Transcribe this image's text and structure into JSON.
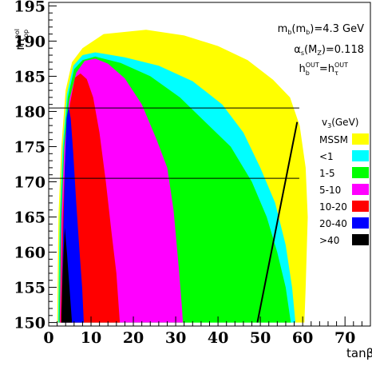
{
  "chart_data": {
    "type": "area",
    "xlabel": "tanβ",
    "ylabel": "m_top^pol",
    "xlim": [
      0,
      76
    ],
    "ylim": [
      149.5,
      195.5
    ],
    "x_ticks": [
      0,
      10,
      20,
      30,
      40,
      50,
      60,
      70
    ],
    "y_ticks": [
      150,
      155,
      160,
      165,
      170,
      175,
      180,
      185,
      190,
      195
    ],
    "grid": false,
    "annotations": [
      "m_b(m_b)=4.3 GeV",
      "α_s(M_Z)=0.118",
      "h_b^OUT=h_τ^OUT"
    ],
    "legend_title": "v_3(GeV)",
    "legend_position": "right",
    "horizontal_lines": [
      180.5,
      170.5
    ],
    "regions": [
      {
        "name": "MSSM",
        "color": "#ffff00",
        "boundary": [
          [
            2.0,
            150
          ],
          [
            2.3,
            165
          ],
          [
            3.0,
            175
          ],
          [
            4.0,
            183
          ],
          [
            5.5,
            187
          ],
          [
            8,
            189
          ],
          [
            13,
            191
          ],
          [
            23,
            191.6
          ],
          [
            32,
            190.8
          ],
          [
            40,
            189.3
          ],
          [
            47,
            187.3
          ],
          [
            53,
            184.5
          ],
          [
            57,
            182
          ],
          [
            59.3,
            178
          ],
          [
            60.7,
            172
          ],
          [
            61.2,
            165
          ],
          [
            60.7,
            155
          ],
          [
            60.4,
            150
          ]
        ]
      },
      {
        "name": "<1",
        "color": "#00ffff",
        "boundary": [
          [
            2.2,
            150
          ],
          [
            2.6,
            165
          ],
          [
            3.3,
            175
          ],
          [
            4.3,
            182.5
          ],
          [
            5.8,
            186.5
          ],
          [
            8,
            188
          ],
          [
            11,
            188.4
          ],
          [
            18,
            187.7
          ],
          [
            26,
            186.5
          ],
          [
            34,
            184.3
          ],
          [
            41,
            181
          ],
          [
            46,
            177
          ],
          [
            50,
            172
          ],
          [
            53.5,
            167
          ],
          [
            56,
            161
          ],
          [
            57.5,
            155
          ],
          [
            58.3,
            150
          ]
        ]
      },
      {
        "name": "1-5",
        "color": "#00ff00",
        "boundary": [
          [
            2.4,
            150
          ],
          [
            2.8,
            165
          ],
          [
            3.5,
            175
          ],
          [
            4.5,
            182
          ],
          [
            6,
            186
          ],
          [
            8,
            187.3
          ],
          [
            11,
            187.8
          ],
          [
            17,
            186.9
          ],
          [
            24,
            185
          ],
          [
            31,
            182
          ],
          [
            37,
            178.5
          ],
          [
            43,
            175
          ],
          [
            48,
            170
          ],
          [
            51.5,
            165
          ],
          [
            54,
            160
          ],
          [
            56,
            155
          ],
          [
            57.2,
            150
          ]
        ]
      },
      {
        "name": "5-10",
        "color": "#ff00ff",
        "boundary": [
          [
            2.6,
            150
          ],
          [
            3.0,
            165
          ],
          [
            3.7,
            175
          ],
          [
            4.8,
            181.5
          ],
          [
            6.5,
            185.5
          ],
          [
            8.5,
            187.2
          ],
          [
            11,
            187.5
          ],
          [
            14,
            186.8
          ],
          [
            18,
            184.7
          ],
          [
            22,
            181
          ],
          [
            25.5,
            176
          ],
          [
            28,
            172
          ],
          [
            29.5,
            166
          ],
          [
            30.7,
            158
          ],
          [
            31.5,
            152
          ],
          [
            31.7,
            150
          ]
        ]
      },
      {
        "name": "10-20",
        "color": "#ff0000",
        "boundary": [
          [
            2.8,
            150
          ],
          [
            3.3,
            165
          ],
          [
            4.0,
            175
          ],
          [
            5.0,
            181
          ],
          [
            6.2,
            184.8
          ],
          [
            7.5,
            185.4
          ],
          [
            9,
            184.6
          ],
          [
            10.5,
            182
          ],
          [
            12,
            177
          ],
          [
            13.5,
            170
          ],
          [
            14.8,
            163
          ],
          [
            16,
            157
          ],
          [
            16.8,
            150
          ]
        ]
      },
      {
        "name": "20-40",
        "color": "#0000ff",
        "boundary": [
          [
            3.0,
            150
          ],
          [
            3.4,
            162
          ],
          [
            3.8,
            172
          ],
          [
            4.2,
            179
          ],
          [
            4.7,
            180.7
          ],
          [
            5.2,
            179
          ],
          [
            5.8,
            174
          ],
          [
            6.5,
            167
          ],
          [
            7.3,
            160
          ],
          [
            7.9,
            155
          ],
          [
            8.3,
            150
          ]
        ]
      },
      {
        "name": ">40",
        "color": "#000000",
        "boundary": [
          [
            3.0,
            150
          ],
          [
            3.2,
            155
          ],
          [
            3.5,
            160
          ],
          [
            3.8,
            163.5
          ],
          [
            4.3,
            160
          ],
          [
            4.9,
            155
          ],
          [
            5.5,
            150
          ]
        ]
      }
    ],
    "diagonal_line": [
      [
        49.3,
        150
      ],
      [
        58.7,
        178.5
      ]
    ]
  }
}
